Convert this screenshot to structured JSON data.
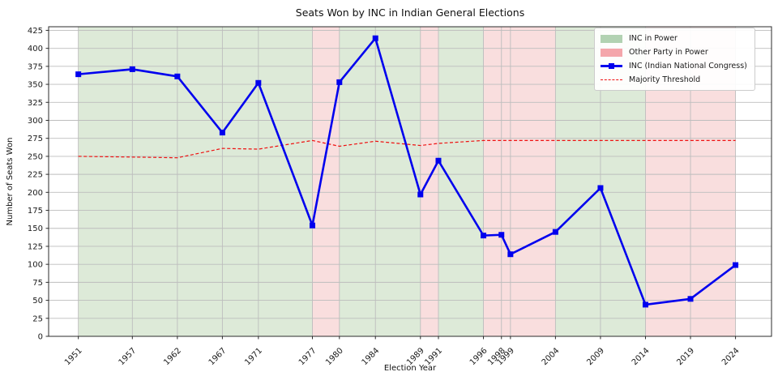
{
  "chart_data": {
    "type": "line",
    "title": "Seats Won by INC in Indian General Elections",
    "xlabel": "Election Year",
    "ylabel": "Number of Seats Won",
    "x": [
      1951,
      1957,
      1962,
      1967,
      1971,
      1977,
      1980,
      1984,
      1989,
      1991,
      1996,
      1998,
      1999,
      2004,
      2009,
      2014,
      2019,
      2024
    ],
    "series": [
      {
        "name": "INC (Indian National Congress)",
        "color": "#0000ee",
        "marker": "square",
        "style": "solid",
        "values": [
          364,
          371,
          361,
          283,
          352,
          154,
          353,
          414,
          197,
          244,
          140,
          141,
          114,
          145,
          206,
          44,
          52,
          99
        ]
      },
      {
        "name": "Majority Threshold",
        "color": "#ee1111",
        "marker": "none",
        "style": "dashed",
        "values": [
          250,
          249,
          248,
          261,
          260,
          272,
          264,
          271,
          265,
          268,
          272,
          272,
          272,
          272,
          272,
          272,
          272,
          272
        ]
      }
    ],
    "bands": [
      {
        "label": "INC in Power",
        "fill": "#ddead8",
        "legend_fill": "#b2d2b2",
        "ranges": [
          [
            1951,
            1977
          ],
          [
            1980,
            1989
          ],
          [
            1991,
            1996
          ],
          [
            2004,
            2014
          ]
        ]
      },
      {
        "label": "Other Party in Power",
        "fill": "#f9dede",
        "legend_fill": "#f4a6ab",
        "ranges": [
          [
            1977,
            1980
          ],
          [
            1989,
            1991
          ],
          [
            1996,
            2004
          ],
          [
            2014,
            2024
          ]
        ]
      }
    ],
    "xlim": [
      1947.7,
      2028
    ],
    "ylim": [
      0,
      430
    ],
    "yticks": [
      0,
      25,
      50,
      75,
      100,
      125,
      150,
      175,
      200,
      225,
      250,
      275,
      300,
      325,
      350,
      375,
      400,
      425
    ],
    "grid": true,
    "legend_position": "upper right",
    "colors": {
      "grid": "#bdbdbd",
      "spine": "#2b2b2b",
      "text": "#1a1a1a",
      "background": "#ffffff"
    }
  },
  "legend": {
    "entries": [
      {
        "label": "INC in Power",
        "swatch": "green-patch"
      },
      {
        "label": "Other Party in Power",
        "swatch": "pink-patch"
      },
      {
        "label": "INC (Indian National Congress)",
        "swatch": "blue-line-square-marker"
      },
      {
        "label": "Majority Threshold",
        "swatch": "red-dashed-line"
      }
    ]
  }
}
